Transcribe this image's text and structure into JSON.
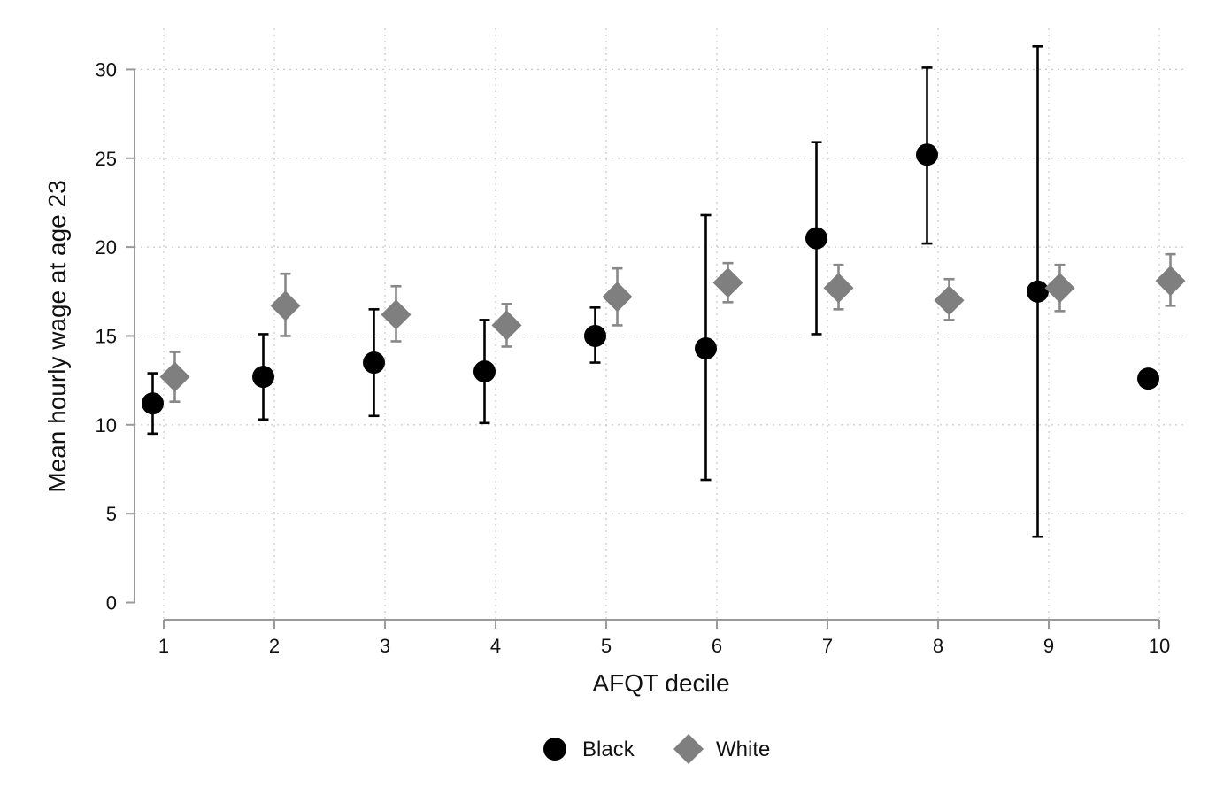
{
  "chart_data": {
    "type": "scatter",
    "title": "",
    "xlabel": "AFQT decile",
    "ylabel": "Mean hourly wage at age 23",
    "x": [
      1,
      2,
      3,
      4,
      5,
      6,
      7,
      8,
      9,
      10
    ],
    "x_tick_labels": [
      "1",
      "2",
      "3",
      "4",
      "5",
      "6",
      "7",
      "8",
      "9",
      "10"
    ],
    "y_ticks": [
      0,
      5,
      10,
      15,
      20,
      25,
      30
    ],
    "y_tick_labels": [
      "0",
      "5",
      "10",
      "15",
      "20",
      "25",
      "30"
    ],
    "ylim": [
      -1,
      32.5
    ],
    "xlim": [
      0.9,
      10.1
    ],
    "grid": true,
    "legend_position": "bottom-center",
    "series": [
      {
        "name": "Black",
        "marker": "circle",
        "color": "#000000",
        "values": [
          11.2,
          12.7,
          13.5,
          13.0,
          15.0,
          14.3,
          20.5,
          25.2,
          17.5,
          12.6
        ],
        "ci_low": [
          9.5,
          10.3,
          10.5,
          10.1,
          13.5,
          6.9,
          15.1,
          20.2,
          3.7,
          null
        ],
        "ci_high": [
          12.9,
          15.1,
          16.5,
          15.9,
          16.6,
          21.8,
          25.9,
          30.1,
          31.3,
          null
        ]
      },
      {
        "name": "White",
        "marker": "diamond",
        "color": "#7f7f7f",
        "values": [
          12.7,
          16.7,
          16.2,
          15.6,
          17.2,
          18.0,
          17.7,
          17.0,
          17.7,
          18.1
        ],
        "ci_low": [
          11.3,
          15.0,
          14.7,
          14.4,
          15.6,
          16.9,
          16.5,
          15.9,
          16.4,
          16.7
        ],
        "ci_high": [
          14.1,
          18.5,
          17.8,
          16.8,
          18.8,
          19.1,
          19.0,
          18.2,
          19.0,
          19.6
        ]
      }
    ]
  }
}
